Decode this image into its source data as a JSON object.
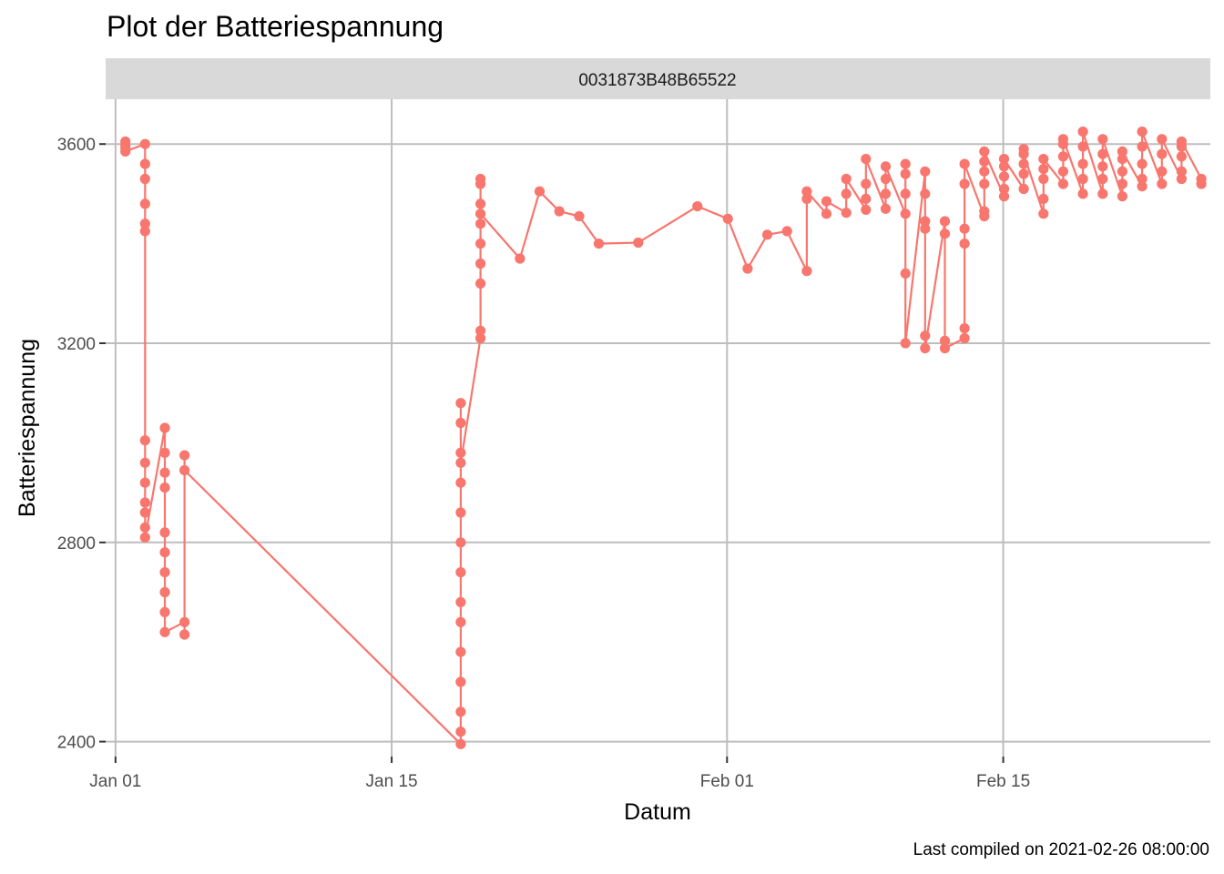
{
  "chart_data": {
    "type": "line",
    "title": "Plot der Batteriespannung",
    "facet_label": "0031873B48B65522",
    "xlabel": "Datum",
    "ylabel": "Batteriespannung",
    "caption": "Last compiled on 2021-02-26 08:00:00",
    "x_ticks": [
      {
        "date": "2021-01-01",
        "label": "Jan 01"
      },
      {
        "date": "2021-01-15",
        "label": "Jan 15"
      },
      {
        "date": "2021-02-01",
        "label": "Feb 01"
      },
      {
        "date": "2021-02-15",
        "label": "Feb 15"
      }
    ],
    "y_ticks": [
      2400,
      2800,
      3200,
      3600
    ],
    "xlim": [
      "2020-12-31T12:00",
      "2021-02-25T12:00"
    ],
    "ylim": [
      2370,
      3690
    ],
    "grid": true,
    "legend": "none",
    "color": "#F8766D",
    "series": [
      {
        "points": [
          [
            "2021-01-01T12:00",
            3605
          ],
          [
            "2021-01-01T12:00",
            3598
          ],
          [
            "2021-01-01T12:00",
            3592
          ],
          [
            "2021-01-01T12:00",
            3585
          ],
          [
            "2021-01-02T12:00",
            3600
          ],
          [
            "2021-01-02T12:00",
            3560
          ],
          [
            "2021-01-02T12:00",
            3530
          ],
          [
            "2021-01-02T12:00",
            3480
          ],
          [
            "2021-01-02T12:00",
            3440
          ],
          [
            "2021-01-02T12:00",
            3425
          ],
          [
            "2021-01-02T12:00",
            3005
          ],
          [
            "2021-01-02T12:00",
            2960
          ],
          [
            "2021-01-02T12:00",
            2920
          ],
          [
            "2021-01-02T12:00",
            2880
          ],
          [
            "2021-01-02T12:00",
            2860
          ],
          [
            "2021-01-02T12:00",
            2830
          ],
          [
            "2021-01-02T12:00",
            2810
          ],
          [
            "2021-01-03T12:00",
            3030
          ],
          [
            "2021-01-03T12:00",
            2980
          ],
          [
            "2021-01-03T12:00",
            2940
          ],
          [
            "2021-01-03T12:00",
            2910
          ],
          [
            "2021-01-03T12:00",
            2820
          ],
          [
            "2021-01-03T12:00",
            2780
          ],
          [
            "2021-01-03T12:00",
            2740
          ],
          [
            "2021-01-03T12:00",
            2700
          ],
          [
            "2021-01-03T12:00",
            2660
          ],
          [
            "2021-01-03T12:00",
            2620
          ],
          [
            "2021-01-04T12:00",
            2640
          ],
          [
            "2021-01-04T12:00",
            2615
          ],
          [
            "2021-01-04T12:00",
            2975
          ],
          [
            "2021-01-04T12:00",
            2945
          ],
          [
            "2021-01-18T12:00",
            2395
          ],
          [
            "2021-01-18T12:00",
            2420
          ],
          [
            "2021-01-18T12:00",
            2460
          ],
          [
            "2021-01-18T12:00",
            2520
          ],
          [
            "2021-01-18T12:00",
            2580
          ],
          [
            "2021-01-18T12:00",
            2640
          ],
          [
            "2021-01-18T12:00",
            2680
          ],
          [
            "2021-01-18T12:00",
            2740
          ],
          [
            "2021-01-18T12:00",
            2800
          ],
          [
            "2021-01-18T12:00",
            2860
          ],
          [
            "2021-01-18T12:00",
            2920
          ],
          [
            "2021-01-18T12:00",
            2980
          ],
          [
            "2021-01-18T12:00",
            3040
          ],
          [
            "2021-01-18T12:00",
            3080
          ],
          [
            "2021-01-18T12:00",
            2960
          ],
          [
            "2021-01-19T12:00",
            3210
          ],
          [
            "2021-01-19T12:00",
            3225
          ],
          [
            "2021-01-19T12:00",
            3320
          ],
          [
            "2021-01-19T12:00",
            3360
          ],
          [
            "2021-01-19T12:00",
            3400
          ],
          [
            "2021-01-19T12:00",
            3440
          ],
          [
            "2021-01-19T12:00",
            3480
          ],
          [
            "2021-01-19T12:00",
            3520
          ],
          [
            "2021-01-19T12:00",
            3530
          ],
          [
            "2021-01-19T12:00",
            3460
          ],
          [
            "2021-01-21T12:00",
            3370
          ],
          [
            "2021-01-22T12:00",
            3505
          ],
          [
            "2021-01-23T12:00",
            3465
          ],
          [
            "2021-01-24T12:00",
            3455
          ],
          [
            "2021-01-25T12:00",
            3400
          ],
          [
            "2021-01-27T12:00",
            3402
          ],
          [
            "2021-01-30T12:00",
            3475
          ],
          [
            "2021-02-01T01:00",
            3450
          ],
          [
            "2021-02-02T01:00",
            3350
          ],
          [
            "2021-02-03T01:00",
            3418
          ],
          [
            "2021-02-04T01:00",
            3425
          ],
          [
            "2021-02-05T01:00",
            3345
          ],
          [
            "2021-02-05T01:00",
            3490
          ],
          [
            "2021-02-05T01:00",
            3505
          ],
          [
            "2021-02-06T01:00",
            3460
          ],
          [
            "2021-02-06T01:00",
            3485
          ],
          [
            "2021-02-07T01:00",
            3462
          ],
          [
            "2021-02-07T01:00",
            3500
          ],
          [
            "2021-02-07T01:00",
            3530
          ],
          [
            "2021-02-08T01:00",
            3468
          ],
          [
            "2021-02-08T01:00",
            3490
          ],
          [
            "2021-02-08T01:00",
            3520
          ],
          [
            "2021-02-08T01:00",
            3570
          ],
          [
            "2021-02-09T01:00",
            3470
          ],
          [
            "2021-02-09T01:00",
            3500
          ],
          [
            "2021-02-09T01:00",
            3530
          ],
          [
            "2021-02-09T01:00",
            3555
          ],
          [
            "2021-02-10T01:00",
            3460
          ],
          [
            "2021-02-10T01:00",
            3500
          ],
          [
            "2021-02-10T01:00",
            3540
          ],
          [
            "2021-02-10T01:00",
            3560
          ],
          [
            "2021-02-10T01:00",
            3340
          ],
          [
            "2021-02-10T01:00",
            3200
          ],
          [
            "2021-02-11T01:00",
            3545
          ],
          [
            "2021-02-11T01:00",
            3500
          ],
          [
            "2021-02-11T01:00",
            3445
          ],
          [
            "2021-02-11T01:00",
            3430
          ],
          [
            "2021-02-11T01:00",
            3215
          ],
          [
            "2021-02-11T01:00",
            3190
          ],
          [
            "2021-02-12T01:00",
            3445
          ],
          [
            "2021-02-12T01:00",
            3420
          ],
          [
            "2021-02-12T01:00",
            3205
          ],
          [
            "2021-02-12T01:00",
            3190
          ],
          [
            "2021-02-13T01:00",
            3210
          ],
          [
            "2021-02-13T01:00",
            3230
          ],
          [
            "2021-02-13T01:00",
            3400
          ],
          [
            "2021-02-13T01:00",
            3430
          ],
          [
            "2021-02-13T01:00",
            3520
          ],
          [
            "2021-02-13T01:00",
            3560
          ],
          [
            "2021-02-14T01:00",
            3455
          ],
          [
            "2021-02-14T01:00",
            3465
          ],
          [
            "2021-02-14T01:00",
            3520
          ],
          [
            "2021-02-14T01:00",
            3545
          ],
          [
            "2021-02-14T01:00",
            3565
          ],
          [
            "2021-02-14T01:00",
            3585
          ],
          [
            "2021-02-15T01:00",
            3495
          ],
          [
            "2021-02-15T01:00",
            3510
          ],
          [
            "2021-02-15T01:00",
            3535
          ],
          [
            "2021-02-15T01:00",
            3555
          ],
          [
            "2021-02-15T01:00",
            3570
          ],
          [
            "2021-02-16T01:00",
            3510
          ],
          [
            "2021-02-16T01:00",
            3540
          ],
          [
            "2021-02-16T01:00",
            3560
          ],
          [
            "2021-02-16T01:00",
            3590
          ],
          [
            "2021-02-16T01:00",
            3580
          ],
          [
            "2021-02-17T01:00",
            3460
          ],
          [
            "2021-02-17T01:00",
            3490
          ],
          [
            "2021-02-17T01:00",
            3530
          ],
          [
            "2021-02-17T01:00",
            3550
          ],
          [
            "2021-02-17T01:00",
            3570
          ],
          [
            "2021-02-18T01:00",
            3520
          ],
          [
            "2021-02-18T01:00",
            3545
          ],
          [
            "2021-02-18T01:00",
            3575
          ],
          [
            "2021-02-18T01:00",
            3600
          ],
          [
            "2021-02-18T01:00",
            3610
          ],
          [
            "2021-02-19T01:00",
            3500
          ],
          [
            "2021-02-19T01:00",
            3530
          ],
          [
            "2021-02-19T01:00",
            3560
          ],
          [
            "2021-02-19T01:00",
            3595
          ],
          [
            "2021-02-19T01:00",
            3625
          ],
          [
            "2021-02-20T01:00",
            3500
          ],
          [
            "2021-02-20T01:00",
            3530
          ],
          [
            "2021-02-20T01:00",
            3555
          ],
          [
            "2021-02-20T01:00",
            3580
          ],
          [
            "2021-02-20T01:00",
            3610
          ],
          [
            "2021-02-21T01:00",
            3495
          ],
          [
            "2021-02-21T01:00",
            3520
          ],
          [
            "2021-02-21T01:00",
            3545
          ],
          [
            "2021-02-21T01:00",
            3570
          ],
          [
            "2021-02-21T01:00",
            3585
          ],
          [
            "2021-02-22T01:00",
            3515
          ],
          [
            "2021-02-22T01:00",
            3530
          ],
          [
            "2021-02-22T01:00",
            3560
          ],
          [
            "2021-02-22T01:00",
            3595
          ],
          [
            "2021-02-22T01:00",
            3625
          ],
          [
            "2021-02-23T01:00",
            3520
          ],
          [
            "2021-02-23T01:00",
            3545
          ],
          [
            "2021-02-23T01:00",
            3580
          ],
          [
            "2021-02-23T01:00",
            3610
          ],
          [
            "2021-02-24T01:00",
            3530
          ],
          [
            "2021-02-24T01:00",
            3545
          ],
          [
            "2021-02-24T01:00",
            3575
          ],
          [
            "2021-02-24T01:00",
            3595
          ],
          [
            "2021-02-24T01:00",
            3605
          ],
          [
            "2021-02-25T01:00",
            3530
          ],
          [
            "2021-02-25T01:00",
            3520
          ]
        ]
      }
    ]
  }
}
